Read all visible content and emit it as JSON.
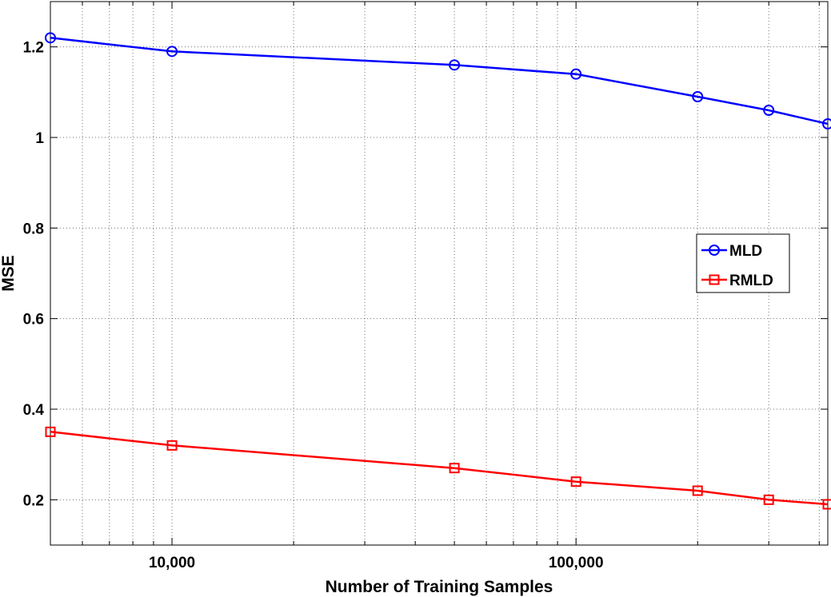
{
  "chart_data": {
    "type": "line",
    "x_scale": "log",
    "xlabel": "Number of Training Samples",
    "ylabel": "MSE",
    "xlim": [
      5000,
      420000
    ],
    "ylim": [
      0.1,
      1.3
    ],
    "x_ticks": [
      {
        "value": 10000,
        "label": "10,000"
      },
      {
        "value": 100000,
        "label": "100,000"
      }
    ],
    "y_ticks": [
      {
        "value": 0.2,
        "label": "0.2"
      },
      {
        "value": 0.4,
        "label": "0.4"
      },
      {
        "value": 0.6,
        "label": "0.6"
      },
      {
        "value": 0.8,
        "label": "0.8"
      },
      {
        "value": 1.0,
        "label": "1"
      },
      {
        "value": 1.2,
        "label": "1.2"
      }
    ],
    "grid": true,
    "legend_position": "right",
    "x": [
      5000,
      10000,
      50000,
      100000,
      200000,
      300000,
      420000
    ],
    "series": [
      {
        "name": "MLD",
        "color": "#0000ff",
        "marker": "circle",
        "values": [
          1.22,
          1.19,
          1.16,
          1.14,
          1.09,
          1.06,
          1.03
        ]
      },
      {
        "name": "RMLD",
        "color": "#ff0000",
        "marker": "square",
        "values": [
          0.35,
          0.32,
          0.27,
          0.24,
          0.22,
          0.2,
          0.19
        ]
      }
    ]
  }
}
